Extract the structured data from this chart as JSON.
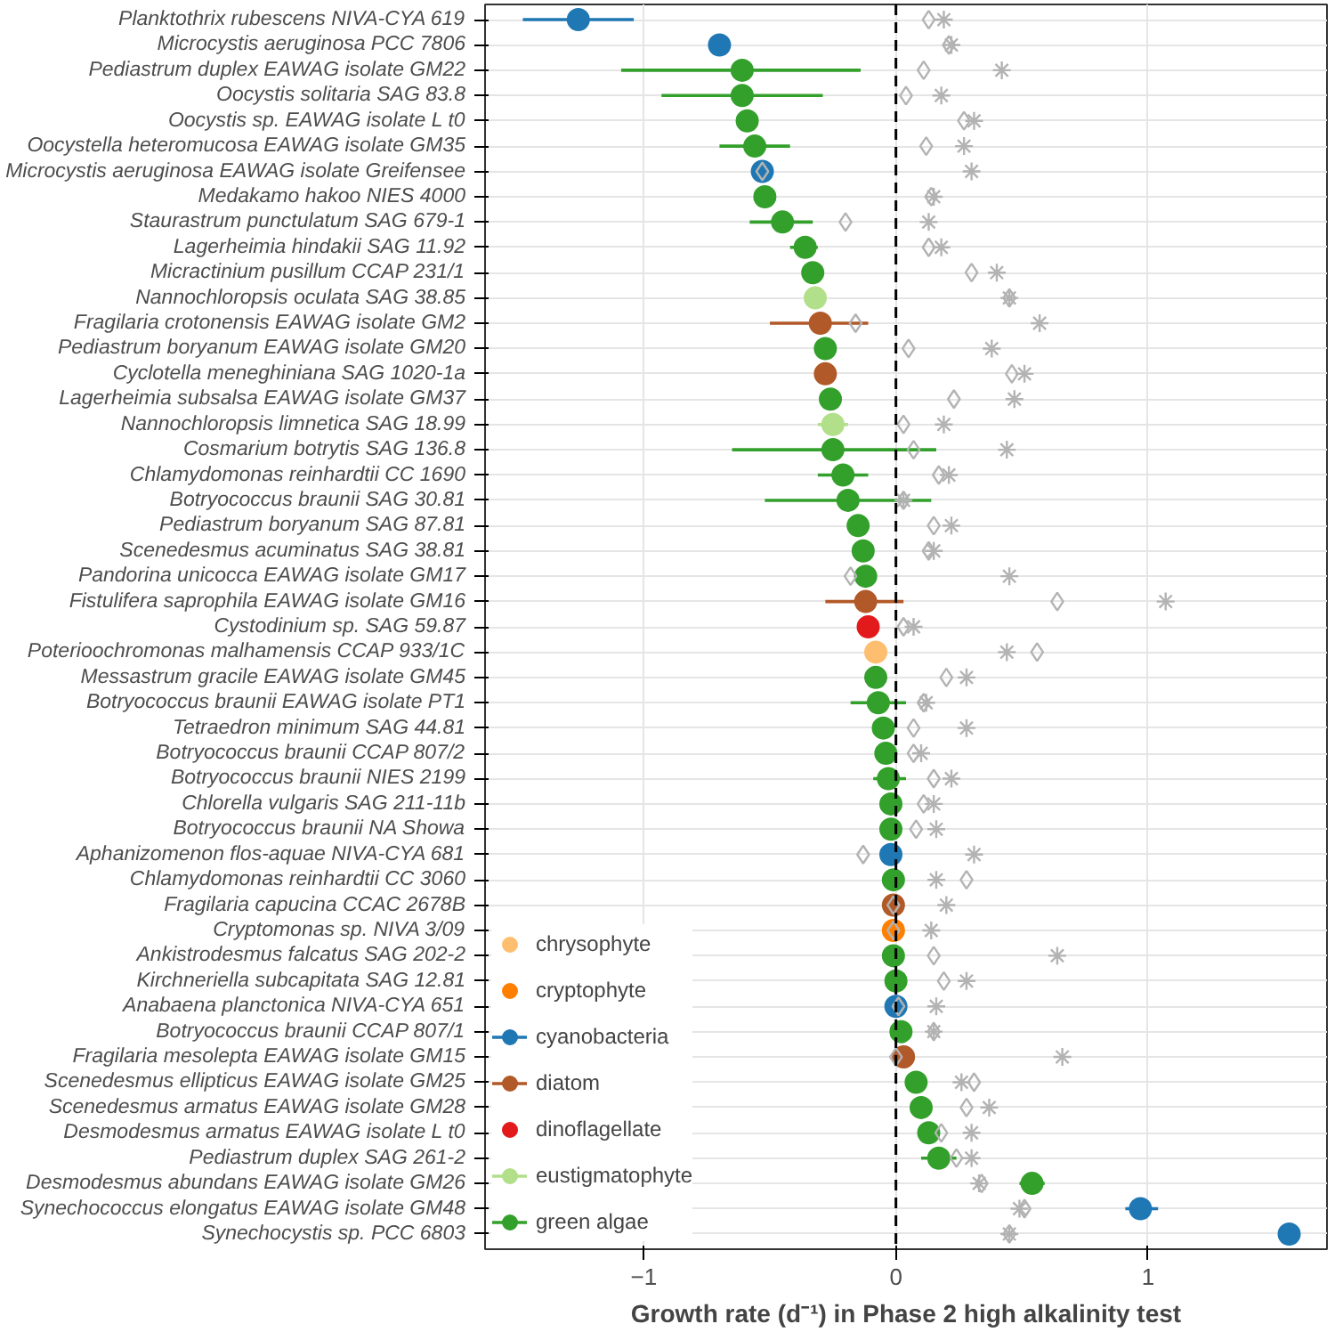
{
  "chart_data": {
    "type": "scatter",
    "orientation": "horizontal",
    "xlabel": "Growth rate (d⁻¹) in Phase 2 high alkalinity test",
    "categories": [
      "Planktothrix rubescens NIVA-CYA 619",
      "Microcystis aeruginosa PCC 7806",
      "Pediastrum duplex EAWAG isolate GM22",
      "Oocystis solitaria SAG 83.8",
      "Oocystis sp. EAWAG isolate L t0",
      "Oocystella heteromucosa EAWAG isolate GM35",
      "Microcystis aeruginosa EAWAG isolate Greifensee",
      "Medakamo hakoo NIES 4000",
      "Staurastrum punctulatum SAG 679-1",
      "Lagerheimia hindakii SAG 11.92",
      "Micractinium pusillum CCAP 231/1",
      "Nannochloropsis oculata SAG 38.85",
      "Fragilaria crotonensis EAWAG isolate GM2",
      "Pediastrum boryanum EAWAG isolate GM20",
      "Cyclotella meneghiniana SAG 1020-1a",
      "Lagerheimia subsalsa EAWAG isolate GM37",
      "Nannochloropsis limnetica SAG 18.99",
      "Cosmarium botrytis SAG 136.8",
      "Chlamydomonas reinhardtii CC 1690",
      "Botryococcus braunii SAG 30.81",
      "Pediastrum boryanum SAG 87.81",
      "Scenedesmus acuminatus SAG 38.81",
      "Pandorina unicocca EAWAG isolate GM17",
      "Fistulifera saprophila EAWAG isolate GM16",
      "Cystodinium sp. SAG 59.87",
      "Poterioochromonas malhamensis CCAP 933/1C",
      "Messastrum gracile EAWAG isolate GM45",
      "Botryococcus braunii EAWAG isolate PT1",
      "Tetraedron minimum SAG 44.81",
      "Botryococcus braunii CCAP 807/2",
      "Botryococcus braunii NIES 2199",
      "Chlorella vulgaris SAG 211-11b",
      "Botryococcus braunii NA Showa",
      "Aphanizomenon flos-aquae NIVA-CYA 681",
      "Chlamydomonas reinhardtii CC 3060",
      "Fragilaria capucina CCAC 2678B",
      "Cryptomonas sp. NIVA 3/09",
      "Ankistrodesmus falcatus SAG 202-2",
      "Kirchneriella subcapitata SAG 12.81",
      "Anabaena planctonica NIVA-CYA 651",
      "Botryococcus braunii CCAP 807/1",
      "Fragilaria mesolepta EAWAG isolate GM15",
      "Scenedesmus ellipticus EAWAG isolate GM25",
      "Scenedesmus armatus EAWAG isolate GM28",
      "Desmodesmus armatus EAWAG isolate L t0",
      "Pediastrum duplex SAG 261-2",
      "Desmodesmus abundans EAWAG isolate GM26",
      "Synechococcus elongatus EAWAG isolate GM48",
      "Synechocystis sp. PCC 6803"
    ],
    "xlim": [
      -1.63,
      1.71
    ],
    "xticks": [
      -1,
      0,
      1
    ],
    "grid": true,
    "legend": "bottom left",
    "ref_lines": [
      {
        "axis": "x",
        "value": 0,
        "color": "#000000",
        "line_style": "dashed"
      }
    ],
    "series": [
      {
        "marker": "diamond",
        "color": "#b3b3b3",
        "values": [
          0.13,
          0.21,
          0.11,
          0.04,
          0.27,
          0.12,
          -0.53,
          0.14,
          -0.2,
          0.13,
          0.3,
          0.45,
          -0.16,
          0.05,
          0.46,
          0.23,
          0.03,
          0.07,
          0.17,
          0.03,
          0.15,
          0.13,
          -0.18,
          0.64,
          0.03,
          0.56,
          0.2,
          0.11,
          0.07,
          0.07,
          0.15,
          0.11,
          0.08,
          -0.13,
          0.28,
          -0.01,
          -0.01,
          0.15,
          0.19,
          0.01,
          0.15,
          0.0,
          0.31,
          0.28,
          0.18,
          0.24,
          0.34,
          0.51,
          0.45
        ]
      },
      {
        "marker": "cross",
        "color": "#b3b3b3",
        "values": [
          0.19,
          0.22,
          0.42,
          0.18,
          0.31,
          0.27,
          0.3,
          0.15,
          0.13,
          0.18,
          0.4,
          0.45,
          0.57,
          0.38,
          0.51,
          0.47,
          0.19,
          0.44,
          0.21,
          0.03,
          0.22,
          0.15,
          0.45,
          1.07,
          0.07,
          0.44,
          0.28,
          0.12,
          0.28,
          0.1,
          0.22,
          0.15,
          0.16,
          0.31,
          0.16,
          0.2,
          0.14,
          0.64,
          0.28,
          0.16,
          0.15,
          0.66,
          0.26,
          0.37,
          0.3,
          0.3,
          0.33,
          0.49,
          0.45
        ]
      },
      {
        "name": "chrysophyte",
        "color": "#fdbf6f",
        "marker": "circle",
        "values": [
          null,
          null,
          null,
          null,
          null,
          null,
          null,
          null,
          null,
          null,
          null,
          null,
          null,
          null,
          null,
          null,
          null,
          null,
          null,
          null,
          null,
          null,
          null,
          null,
          null,
          -0.08,
          null,
          null,
          null,
          null,
          null,
          null,
          null,
          null,
          null,
          null,
          null,
          null,
          null,
          null,
          null,
          null,
          null,
          null,
          null,
          null,
          null,
          null,
          null
        ]
      },
      {
        "name": "cryptophyte",
        "color": "#ff7f00",
        "marker": "circle",
        "values": [
          null,
          null,
          null,
          null,
          null,
          null,
          null,
          null,
          null,
          null,
          null,
          null,
          null,
          null,
          null,
          null,
          null,
          null,
          null,
          null,
          null,
          null,
          null,
          null,
          null,
          null,
          null,
          null,
          null,
          null,
          null,
          null,
          null,
          null,
          null,
          null,
          -0.01,
          null,
          null,
          null,
          null,
          null,
          null,
          null,
          null,
          null,
          null,
          null,
          null
        ]
      },
      {
        "name": "cyanobacteria",
        "color": "#1f78b4",
        "marker": "circle",
        "values": [
          -1.26,
          -0.7,
          null,
          null,
          null,
          null,
          -0.53,
          null,
          null,
          null,
          null,
          null,
          null,
          null,
          null,
          null,
          null,
          null,
          null,
          null,
          null,
          null,
          null,
          null,
          null,
          null,
          null,
          null,
          null,
          null,
          null,
          null,
          null,
          -0.02,
          null,
          null,
          null,
          null,
          null,
          0.0,
          null,
          null,
          null,
          null,
          null,
          null,
          null,
          0.97,
          1.56
        ],
        "errors": [
          [
            -1.48,
            -1.04
          ],
          null,
          null,
          null,
          null,
          null,
          null,
          null,
          null,
          null,
          null,
          null,
          null,
          null,
          null,
          null,
          null,
          null,
          null,
          null,
          null,
          null,
          null,
          null,
          null,
          null,
          null,
          null,
          null,
          null,
          null,
          null,
          null,
          null,
          null,
          null,
          null,
          null,
          null,
          null,
          null,
          null,
          null,
          null,
          null,
          null,
          null,
          [
            0.91,
            1.04
          ],
          null
        ]
      },
      {
        "name": "diatom",
        "color": "#b15928",
        "marker": "circle",
        "values": [
          null,
          null,
          null,
          null,
          null,
          null,
          null,
          null,
          null,
          null,
          null,
          null,
          -0.3,
          null,
          -0.28,
          null,
          null,
          null,
          null,
          null,
          null,
          null,
          null,
          -0.12,
          null,
          null,
          null,
          null,
          null,
          null,
          null,
          null,
          null,
          null,
          null,
          -0.01,
          null,
          null,
          null,
          null,
          null,
          0.03,
          null,
          null,
          null,
          null,
          null,
          null,
          null
        ],
        "errors": [
          null,
          null,
          null,
          null,
          null,
          null,
          null,
          null,
          null,
          null,
          null,
          null,
          [
            -0.5,
            -0.11
          ],
          null,
          null,
          null,
          null,
          null,
          null,
          null,
          null,
          null,
          null,
          [
            -0.28,
            0.03
          ],
          null,
          null,
          null,
          null,
          null,
          null,
          null,
          null,
          null,
          null,
          null,
          null,
          null,
          null,
          null,
          null,
          null,
          null,
          null,
          null,
          null,
          null,
          null,
          null,
          null
        ]
      },
      {
        "name": "dinoflagellate",
        "color": "#e31a1c",
        "marker": "circle",
        "values": [
          null,
          null,
          null,
          null,
          null,
          null,
          null,
          null,
          null,
          null,
          null,
          null,
          null,
          null,
          null,
          null,
          null,
          null,
          null,
          null,
          null,
          null,
          null,
          null,
          -0.11,
          null,
          null,
          null,
          null,
          null,
          null,
          null,
          null,
          null,
          null,
          null,
          null,
          null,
          null,
          null,
          null,
          null,
          null,
          null,
          null,
          null,
          null,
          null,
          null
        ]
      },
      {
        "name": "eustigmatophyte",
        "color": "#b2df8a",
        "marker": "circle",
        "values": [
          null,
          null,
          null,
          null,
          null,
          null,
          null,
          null,
          null,
          null,
          null,
          -0.32,
          null,
          null,
          null,
          null,
          -0.25,
          null,
          null,
          null,
          null,
          null,
          null,
          null,
          null,
          null,
          null,
          null,
          null,
          null,
          null,
          null,
          null,
          null,
          null,
          null,
          null,
          null,
          null,
          null,
          null,
          null,
          null,
          null,
          null,
          null,
          null,
          null,
          null
        ],
        "errors": [
          null,
          null,
          null,
          null,
          null,
          null,
          null,
          null,
          null,
          null,
          null,
          null,
          null,
          null,
          null,
          null,
          [
            -0.31,
            -0.19
          ],
          null,
          null,
          null,
          null,
          null,
          null,
          null,
          null,
          null,
          null,
          null,
          null,
          null,
          null,
          null,
          null,
          null,
          null,
          null,
          null,
          null,
          null,
          null,
          null,
          null,
          null,
          null,
          null,
          null,
          null,
          null,
          null
        ]
      },
      {
        "name": "green algae",
        "color": "#33a02c",
        "marker": "circle",
        "values": [
          null,
          null,
          -0.61,
          -0.61,
          -0.59,
          -0.56,
          null,
          -0.52,
          -0.45,
          -0.36,
          -0.33,
          null,
          null,
          -0.28,
          null,
          -0.26,
          null,
          -0.25,
          -0.21,
          -0.19,
          -0.15,
          -0.13,
          -0.12,
          null,
          null,
          null,
          -0.08,
          -0.07,
          -0.05,
          -0.04,
          -0.03,
          -0.02,
          -0.02,
          null,
          -0.01,
          null,
          null,
          -0.01,
          0.0,
          null,
          0.02,
          null,
          0.08,
          0.1,
          0.13,
          0.17,
          0.54,
          null,
          null
        ],
        "errors": [
          null,
          null,
          [
            -1.09,
            -0.14
          ],
          [
            -0.93,
            -0.29
          ],
          null,
          [
            -0.7,
            -0.42
          ],
          null,
          null,
          [
            -0.58,
            -0.33
          ],
          [
            -0.42,
            -0.31
          ],
          null,
          null,
          null,
          null,
          null,
          null,
          null,
          [
            -0.65,
            0.16
          ],
          [
            -0.31,
            -0.11
          ],
          [
            -0.52,
            0.14
          ],
          null,
          null,
          null,
          null,
          null,
          null,
          null,
          [
            -0.18,
            0.04
          ],
          null,
          null,
          [
            -0.09,
            0.04
          ],
          null,
          null,
          null,
          null,
          null,
          null,
          null,
          null,
          null,
          null,
          null,
          null,
          null,
          null,
          [
            0.1,
            0.24
          ],
          [
            0.49,
            0.59
          ],
          null,
          null
        ]
      }
    ]
  }
}
